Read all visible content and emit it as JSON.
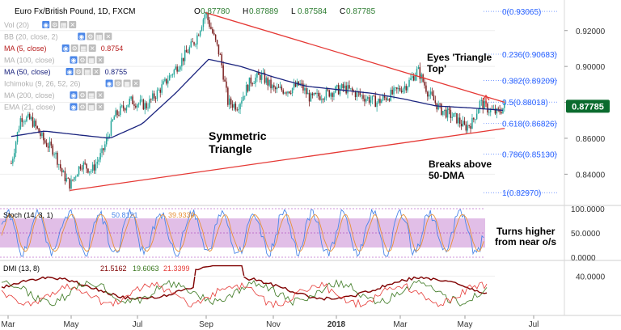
{
  "header": {
    "title": "Euro Fx/British Pound, 1D, FXCM",
    "ohlc": [
      {
        "k": "O",
        "v": "0.87780"
      },
      {
        "k": "H",
        "v": "0.87889"
      },
      {
        "k": "L",
        "v": "0.87584"
      },
      {
        "k": "C",
        "v": "0.87785"
      }
    ]
  },
  "indicators": [
    {
      "label": "Vol (20)",
      "value": "",
      "color": "#b0b0b0"
    },
    {
      "label": "BB (20, close, 2)",
      "value": "",
      "color": "#b0b0b0"
    },
    {
      "label": "MA (5, close)",
      "value": "0.8754",
      "color": "#b71c1c"
    },
    {
      "label": "MA (100, close)",
      "value": "",
      "color": "#b0b0b0"
    },
    {
      "label": "MA (50, close)",
      "value": "0.8755",
      "color": "#1a237e"
    },
    {
      "label": "Ichimoku (9, 26, 52, 26)",
      "value": "",
      "color": "#b0b0b0"
    },
    {
      "label": "MA (200, close)",
      "value": "",
      "color": "#b0b0b0"
    },
    {
      "label": "EMA (21, close)",
      "value": "",
      "color": "#b0b0b0"
    }
  ],
  "stoch": {
    "label": "Stoch (14, 3, 1)",
    "k": "50.8121",
    "d": "39.9330"
  },
  "dmi": {
    "label": "DMI (13, 8)",
    "adx": "21.5162",
    "plus": "19.6063",
    "minus": "21.3399"
  },
  "annotations": {
    "symmetric": "Symmetric",
    "triangle": "Triangle",
    "eyes1": "Eyes 'Triangle",
    "eyes2": "Top'",
    "breaks1": "Breaks above",
    "breaks2": "50-DMA",
    "turns1": "Turns higher",
    "turns2": "from near o/s"
  },
  "colors": {
    "price_up": "#26a69a",
    "price_down": "#7a1f1f",
    "ma50": "#1a237e",
    "trendline": "#e53935",
    "fib": "#2962ff",
    "stoch_band": "#e1bee7",
    "stoch_k": "#4a86e8",
    "stoch_d": "#e69138",
    "dmi_adx": "#7f0000",
    "dmi_plus": "#38761d",
    "dmi_minus": "#e53935",
    "last_price_bg": "#0b6b2e"
  },
  "chart_data": [
    {
      "type": "candlestick",
      "title": "Euro Fx/British Pound, 1D, FXCM",
      "x_labels": [
        "Mar",
        "May",
        "Jul",
        "Sep",
        "Nov",
        "2018",
        "Mar",
        "May",
        "Jul"
      ],
      "y_ticks": [
        "0.92000",
        "0.90000",
        "0.88000",
        "0.86000",
        "0.84000"
      ],
      "ylim": [
        0.8235,
        0.9325
      ],
      "last_price": "0.87785",
      "ma50_last": 0.8755,
      "price_path": [
        {
          "date": "2017-03-01",
          "close": 0.846
        },
        {
          "date": "2017-03-10",
          "close": 0.872
        },
        {
          "date": "2017-03-20",
          "close": 0.87
        },
        {
          "date": "2017-04-01",
          "close": 0.858
        },
        {
          "date": "2017-04-10",
          "close": 0.853
        },
        {
          "date": "2017-04-18",
          "close": 0.84
        },
        {
          "date": "2017-04-25",
          "close": 0.834
        },
        {
          "date": "2017-05-05",
          "close": 0.846
        },
        {
          "date": "2017-05-15",
          "close": 0.842
        },
        {
          "date": "2017-05-25",
          "close": 0.852
        },
        {
          "date": "2017-06-05",
          "close": 0.872
        },
        {
          "date": "2017-06-20",
          "close": 0.881
        },
        {
          "date": "2017-07-05",
          "close": 0.878
        },
        {
          "date": "2017-07-20",
          "close": 0.889
        },
        {
          "date": "2017-08-05",
          "close": 0.902
        },
        {
          "date": "2017-08-20",
          "close": 0.915
        },
        {
          "date": "2017-08-29",
          "close": 0.93
        },
        {
          "date": "2017-09-05",
          "close": 0.918
        },
        {
          "date": "2017-09-12",
          "close": 0.905
        },
        {
          "date": "2017-09-19",
          "close": 0.88
        },
        {
          "date": "2017-09-28",
          "close": 0.878
        },
        {
          "date": "2017-10-10",
          "close": 0.892
        },
        {
          "date": "2017-10-20",
          "close": 0.895
        },
        {
          "date": "2017-11-01",
          "close": 0.887
        },
        {
          "date": "2017-11-15",
          "close": 0.887
        },
        {
          "date": "2017-11-25",
          "close": 0.89
        },
        {
          "date": "2017-12-05",
          "close": 0.882
        },
        {
          "date": "2017-12-20",
          "close": 0.885
        },
        {
          "date": "2018-01-05",
          "close": 0.888
        },
        {
          "date": "2018-01-20",
          "close": 0.884
        },
        {
          "date": "2018-02-05",
          "close": 0.88
        },
        {
          "date": "2018-02-20",
          "close": 0.885
        },
        {
          "date": "2018-03-05",
          "close": 0.89
        },
        {
          "date": "2018-03-15",
          "close": 0.898
        },
        {
          "date": "2018-03-25",
          "close": 0.885
        },
        {
          "date": "2018-04-05",
          "close": 0.876
        },
        {
          "date": "2018-04-20",
          "close": 0.871
        },
        {
          "date": "2018-04-28",
          "close": 0.866
        },
        {
          "date": "2018-05-05",
          "close": 0.869
        },
        {
          "date": "2018-05-12",
          "close": 0.88
        },
        {
          "date": "2018-05-20",
          "close": 0.876
        },
        {
          "date": "2018-05-28",
          "close": 0.874
        },
        {
          "date": "2018-06-04",
          "close": 0.8779
        }
      ],
      "ma50_path": [
        {
          "date": "2017-03-01",
          "value": 0.861
        },
        {
          "date": "2017-04-01",
          "value": 0.864
        },
        {
          "date": "2017-05-01",
          "value": 0.862
        },
        {
          "date": "2017-06-01",
          "value": 0.86
        },
        {
          "date": "2017-07-01",
          "value": 0.868
        },
        {
          "date": "2017-08-01",
          "value": 0.885
        },
        {
          "date": "2017-09-01",
          "value": 0.904
        },
        {
          "date": "2017-10-01",
          "value": 0.9
        },
        {
          "date": "2017-11-01",
          "value": 0.894
        },
        {
          "date": "2017-12-01",
          "value": 0.889
        },
        {
          "date": "2018-01-01",
          "value": 0.887
        },
        {
          "date": "2018-02-01",
          "value": 0.885
        },
        {
          "date": "2018-03-01",
          "value": 0.882
        },
        {
          "date": "2018-04-01",
          "value": 0.878
        },
        {
          "date": "2018-05-01",
          "value": 0.877
        },
        {
          "date": "2018-06-04",
          "value": 0.8755
        }
      ],
      "trendlines": [
        {
          "name": "upper",
          "from": {
            "date": "2017-08-29",
            "value": 0.93
          },
          "to": {
            "date": "2018-06-04",
            "value": 0.88
          }
        },
        {
          "name": "lower",
          "from": {
            "date": "2017-04-25",
            "value": 0.831
          },
          "to": {
            "date": "2018-06-04",
            "value": 0.8655
          }
        }
      ],
      "fibonacci": [
        {
          "ratio": "0",
          "label": "0(0.93065)",
          "value": 0.93065
        },
        {
          "ratio": "0.236",
          "label": "0.236(0.90683)",
          "value": 0.90683
        },
        {
          "ratio": "0.382",
          "label": "0.382(0.89209)",
          "value": 0.89209
        },
        {
          "ratio": "0.5",
          "label": "0.5(0.88018)",
          "value": 0.88018
        },
        {
          "ratio": "0.618",
          "label": "0.618(0.86826)",
          "value": 0.86826
        },
        {
          "ratio": "0.786",
          "label": "0.786(0.85130)",
          "value": 0.8513
        },
        {
          "ratio": "1",
          "label": "1(0.82970)",
          "value": 0.8297
        }
      ]
    },
    {
      "type": "line",
      "title": "Stoch (14, 3, 1)",
      "y_ticks": [
        "100.0000",
        "50.0000",
        "0.0000"
      ],
      "ylim": [
        0,
        100
      ],
      "band": [
        20,
        80
      ],
      "series": [
        {
          "name": "%K",
          "last": 50.8121
        },
        {
          "name": "%D",
          "last": 39.933
        }
      ]
    },
    {
      "type": "line",
      "title": "DMI (13, 8)",
      "y_ticks": [
        "40.0000"
      ],
      "ylim": [
        5,
        52
      ],
      "series": [
        {
          "name": "ADX",
          "last": 21.5162
        },
        {
          "name": "+DI",
          "last": 19.6063
        },
        {
          "name": "-DI",
          "last": 21.3399
        }
      ]
    }
  ]
}
